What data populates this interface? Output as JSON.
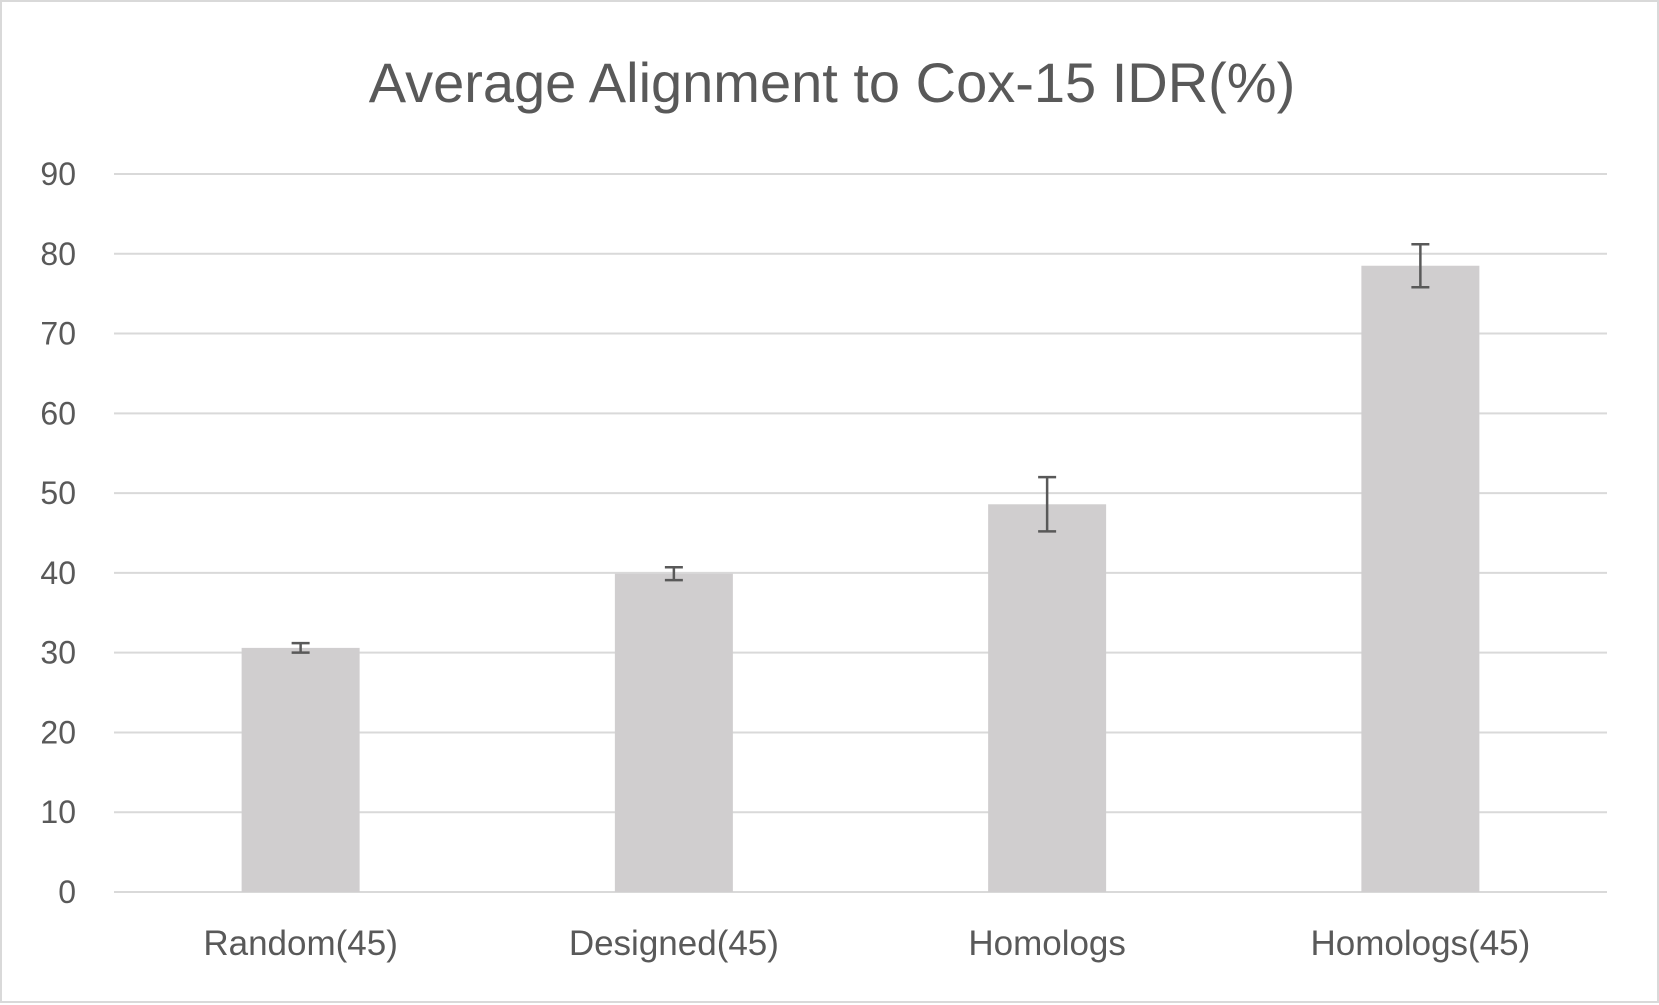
{
  "chart_data": {
    "type": "bar",
    "title": "Average Alignment to Cox-15 IDR(%)",
    "xlabel": "",
    "ylabel": "",
    "categories": [
      "Random(45)",
      "Designed(45)",
      "Homologs",
      "Homologs(45)"
    ],
    "values": [
      30.6,
      39.9,
      48.6,
      78.5
    ],
    "error": [
      0.6,
      0.8,
      3.4,
      2.7
    ],
    "ylim": [
      0,
      90
    ],
    "yticks": [
      "0",
      "10",
      "20",
      "30",
      "40",
      "50",
      "60",
      "70",
      "80",
      "90"
    ],
    "grid": true,
    "legend": "none",
    "bar_color": "#d0cecf",
    "grid_color": "#d9d9d9",
    "error_color": "#595959",
    "text_color": "#595959"
  }
}
